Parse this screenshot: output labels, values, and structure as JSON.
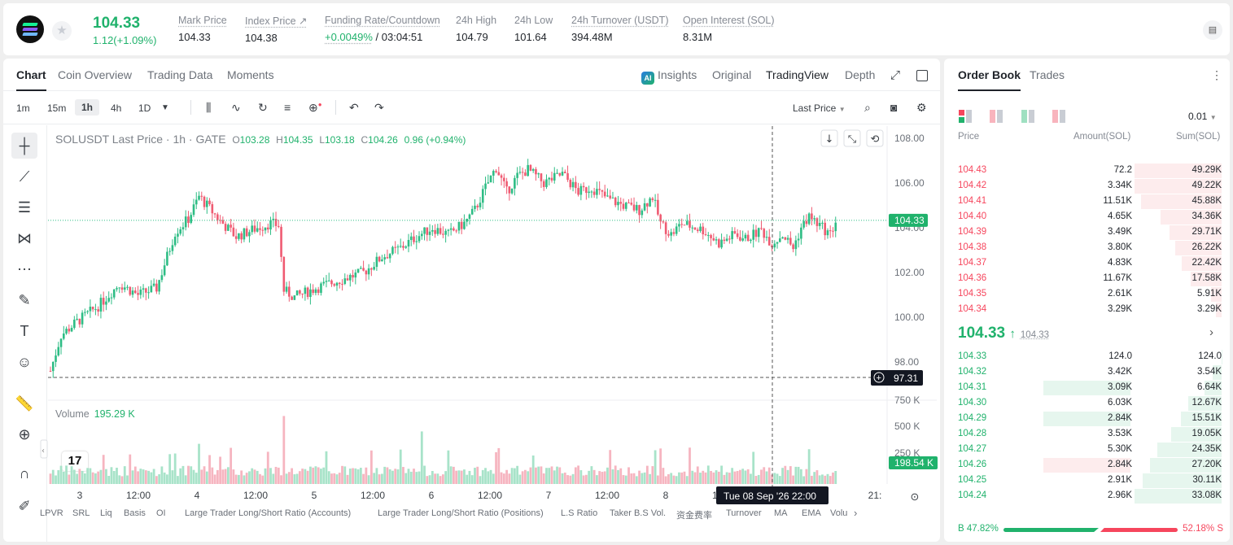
{
  "header": {
    "price": "104.33",
    "change": "1.12(+1.09%)",
    "stats": [
      {
        "label": "Mark Price",
        "value": "104.33",
        "x": 215
      },
      {
        "label": "Index Price ↗",
        "value": "104.38",
        "x": 297
      },
      {
        "label": "Funding Rate/Countdown",
        "value": "+0.0049%",
        "value2": " / 03:04:51",
        "x": 395
      },
      {
        "label": "24h High",
        "value": "104.79",
        "x": 556
      },
      {
        "label": "24h Low",
        "value": "101.64",
        "x": 628
      },
      {
        "label": "24h Turnover (USDT)",
        "value": "394.48M",
        "x": 698
      },
      {
        "label": "Open Interest (SOL)",
        "value": "8.31M",
        "x": 835
      }
    ]
  },
  "tabs": {
    "chart": "Chart",
    "coin": "Coin Overview",
    "trading": "Trading Data",
    "moments": "Moments",
    "insights": "Insights",
    "original": "Original",
    "tradingview": "TradingView",
    "depth": "Depth"
  },
  "toolbar": {
    "tf": [
      "1m",
      "15m",
      "1h",
      "4h",
      "1D"
    ],
    "lastprice": "Last Price"
  },
  "legend": {
    "title": "SOLUSDT Last Price · 1h · GATE",
    "o": "103.28",
    "h": "104.35",
    "l": "103.18",
    "c": "104.26",
    "chg": "0.96 (+0.94%)"
  },
  "volume": {
    "label": "Volume",
    "value": "195.29 K",
    "tag": "198.54 K"
  },
  "crosshair": {
    "price": "97.31",
    "time": "Tue 08 Sep '26   22:00"
  },
  "indicators": [
    "LPVR",
    "SRL",
    "Liq",
    "Basis",
    "OI",
    "Large Trader Long/Short Ratio (Accounts)",
    "Large Trader Long/Short Ratio (Positions)",
    "L.S Ratio",
    "Taker B.S Vol.",
    "资金费率",
    "Turnover",
    "MA",
    "EMA",
    "Volu"
  ],
  "chart_data": {
    "type": "candlestick",
    "ylabels": [
      "108.00",
      "106.00",
      "104.00",
      "102.00",
      "100.00",
      "98.00"
    ],
    "vlabels": [
      "750 K",
      "500 K",
      "250 K"
    ],
    "xlabels": [
      "3",
      "12:00",
      "4",
      "12:00",
      "5",
      "12:00",
      "6",
      "12:00",
      "7",
      "12:00",
      "8",
      "12:00",
      "21:"
    ],
    "last": "104.33"
  },
  "orderbook": {
    "tab1": "Order Book",
    "tab2": "Trades",
    "tick": "0.01",
    "h_price": "Price",
    "h_amount": "Amount(SOL)",
    "h_sum": "Sum(SOL)",
    "asks": [
      [
        "104.43",
        "72.2",
        "49.29K",
        1.0
      ],
      [
        "104.42",
        "3.34K",
        "49.22K",
        0.998
      ],
      [
        "104.41",
        "11.51K",
        "45.88K",
        0.93
      ],
      [
        "104.40",
        "4.65K",
        "34.36K",
        0.7
      ],
      [
        "104.39",
        "3.49K",
        "29.71K",
        0.6
      ],
      [
        "104.38",
        "3.80K",
        "26.22K",
        0.53
      ],
      [
        "104.37",
        "4.83K",
        "22.42K",
        0.455
      ],
      [
        "104.36",
        "11.67K",
        "17.58K",
        0.357
      ],
      [
        "104.35",
        "2.61K",
        "5.91K",
        0.12
      ],
      [
        "104.34",
        "3.29K",
        "3.29K",
        0.067
      ]
    ],
    "mid": "104.33",
    "midarrow": "↑",
    "mark": "104.33",
    "bids": [
      [
        "104.33",
        "124.0",
        "124.0",
        0.004,
        0
      ],
      [
        "104.32",
        "3.42K",
        "3.54K",
        0.107,
        0
      ],
      [
        "104.31",
        "3.09K",
        "6.64K",
        0.2,
        1
      ],
      [
        "104.30",
        "6.03K",
        "12.67K",
        0.38,
        0
      ],
      [
        "104.29",
        "2.84K",
        "15.51K",
        0.47,
        1
      ],
      [
        "104.28",
        "3.53K",
        "19.05K",
        0.58,
        0
      ],
      [
        "104.27",
        "5.30K",
        "24.35K",
        0.74,
        0
      ],
      [
        "104.26",
        "2.84K",
        "27.20K",
        0.82,
        2
      ],
      [
        "104.25",
        "2.91K",
        "30.11K",
        0.91,
        0
      ],
      [
        "104.24",
        "2.96K",
        "33.08K",
        1.0,
        0
      ]
    ],
    "buy": "B 47.82%",
    "sell": "52.18% S"
  }
}
